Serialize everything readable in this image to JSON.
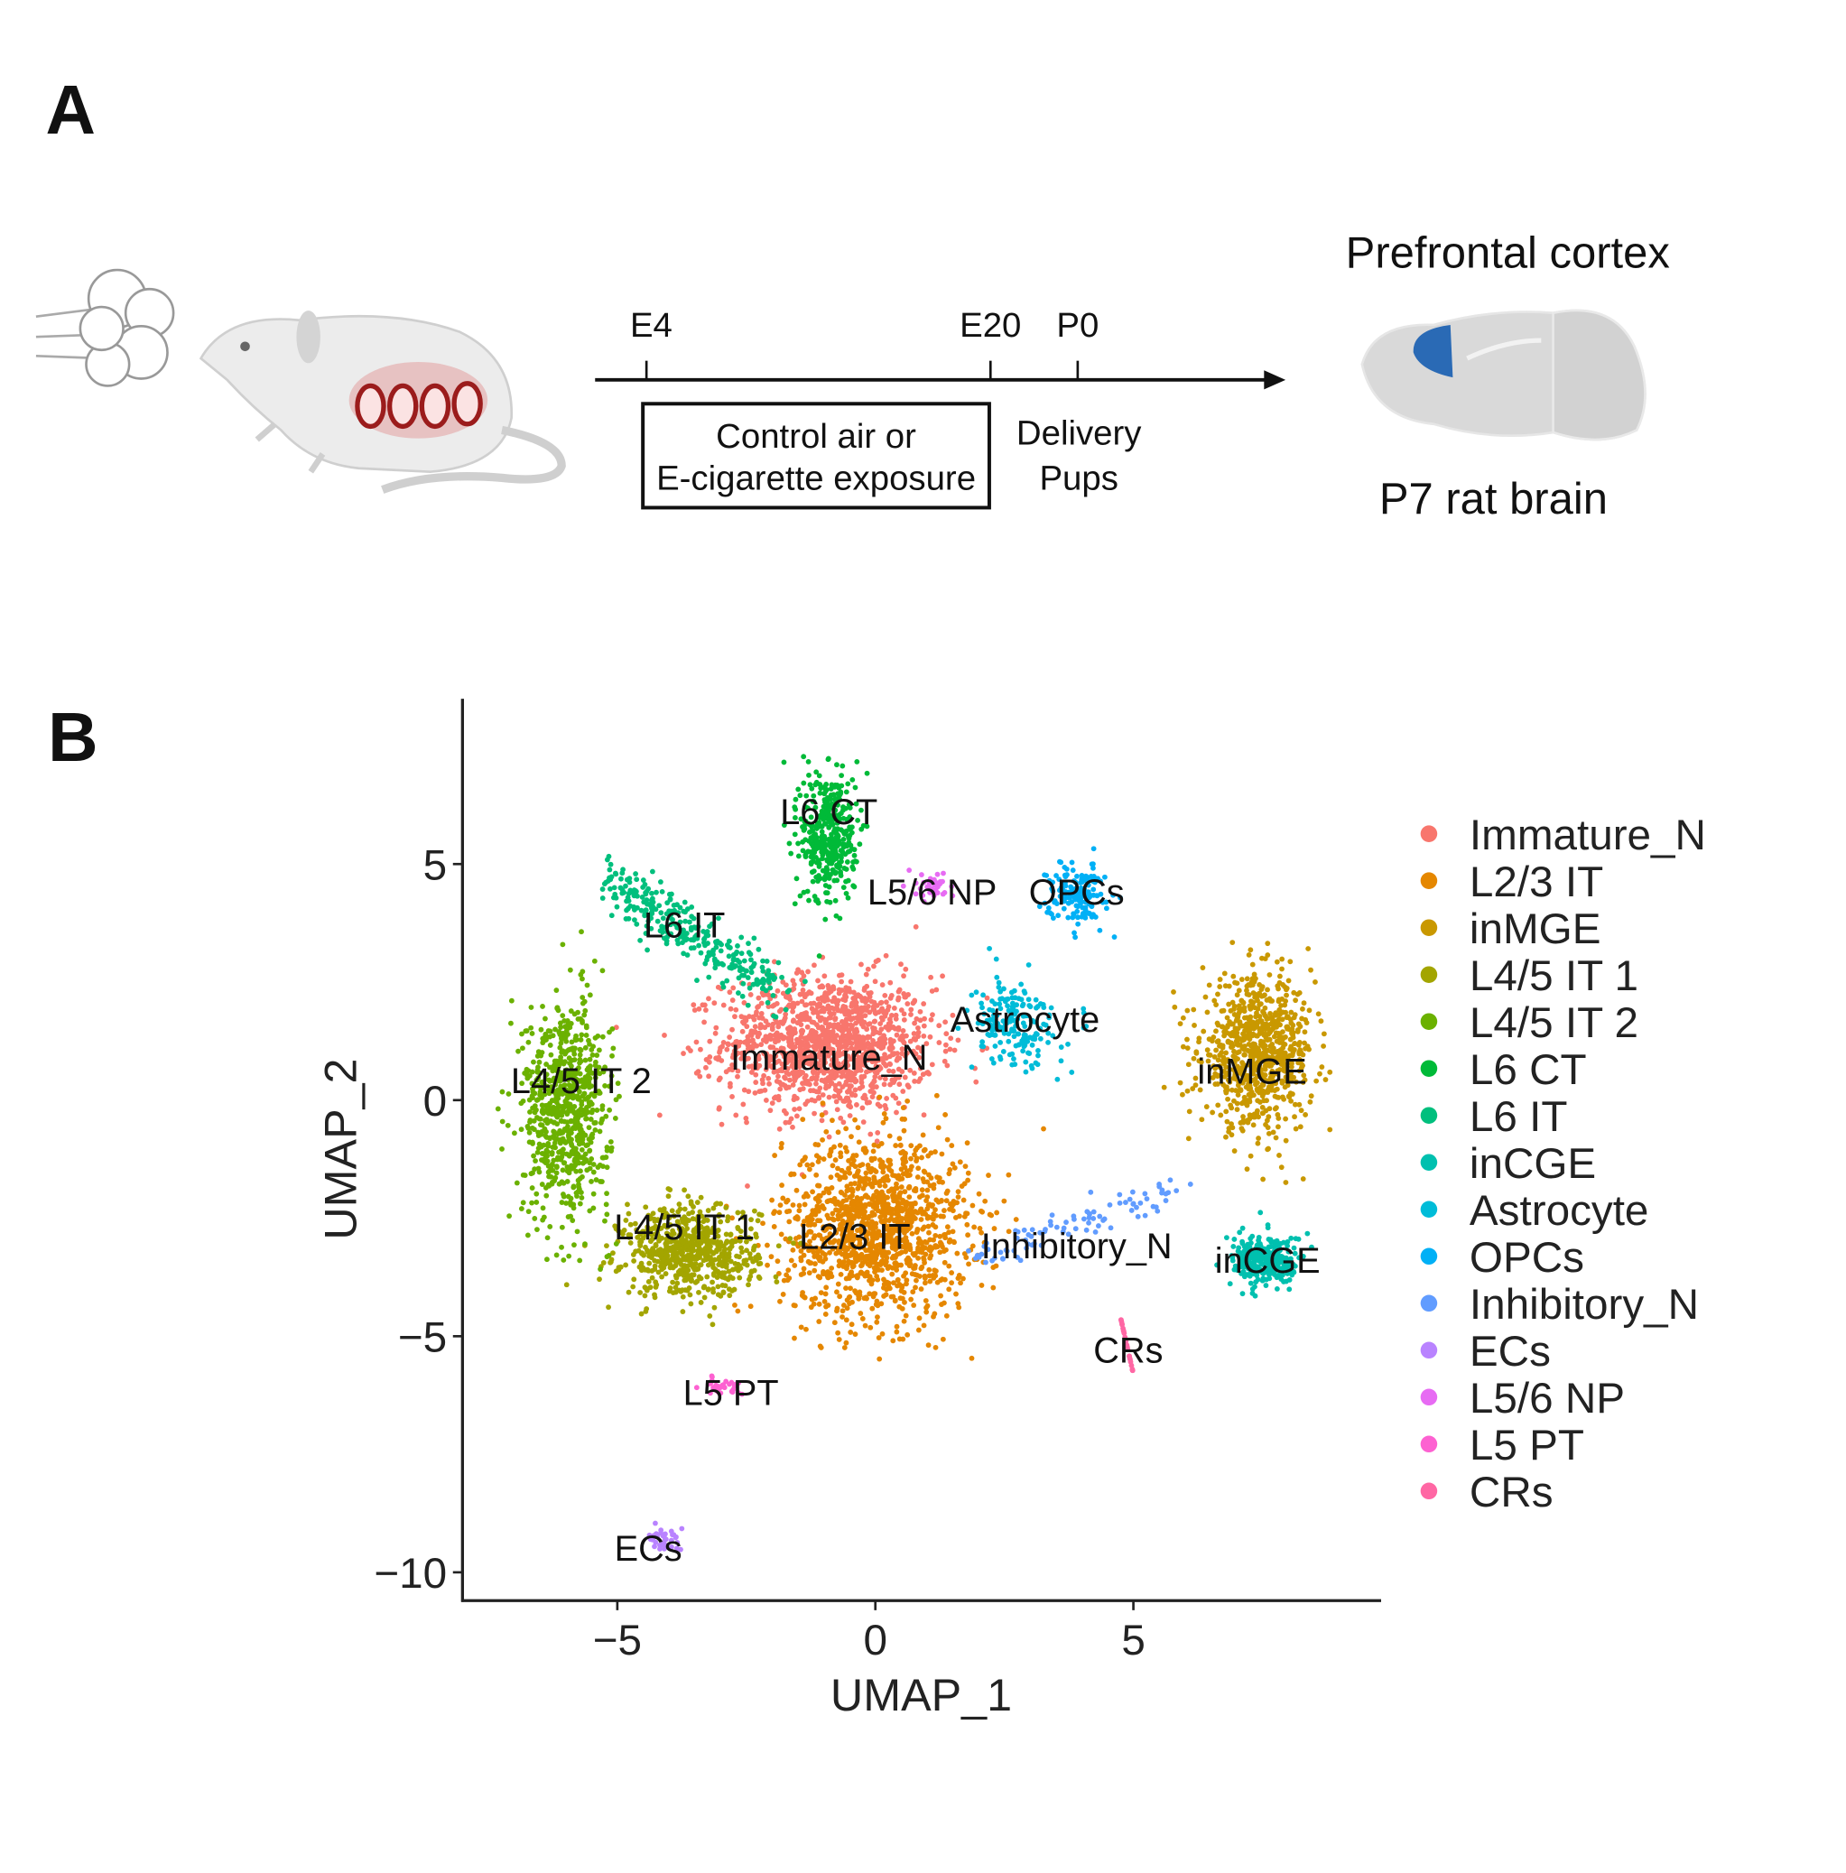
{
  "panel_a": {
    "letter": "A",
    "timeline": {
      "ticks": [
        "E4",
        "E20",
        "P0"
      ],
      "exposure_box": [
        "Control air or",
        "E-cigarette exposure"
      ],
      "delivery": [
        "Delivery",
        "Pups"
      ]
    },
    "brain_title": "Prefrontal cortex",
    "brain_caption": "P7 rat brain",
    "colors": {
      "prefrontal": "#2a6ab5",
      "brain": "#d9d9d9",
      "embryo": "#9b1c1c"
    }
  },
  "panel_b": {
    "letter": "B"
  },
  "chart_data": {
    "type": "scatter",
    "xlabel": "UMAP_1",
    "ylabel": "UMAP_2",
    "xlim": [
      -8,
      9.8
    ],
    "ylim": [
      -10.6,
      8.5
    ],
    "xticks": [
      "-5",
      "0",
      "5"
    ],
    "yticks": [
      "5",
      "0",
      "-5",
      "-10"
    ],
    "xtick_values": [
      -5,
      0,
      5
    ],
    "ytick_values": [
      5,
      0,
      -5,
      -10
    ],
    "grid": false,
    "legend_placement": "right",
    "legend": [
      "Immature_N",
      "L2/3 IT",
      "inMGE",
      "L4/5 IT 1",
      "L4/5 IT 2",
      "L6 CT",
      "L6 IT",
      "inCGE",
      "Astrocyte",
      "OPCs",
      "Inhibitory_N",
      "ECs",
      "L5/6 NP",
      "L5 PT",
      "CRs"
    ],
    "clusters": [
      {
        "name": "Immature_N",
        "color": "#F8766D",
        "center": [
          -0.9,
          1.2
        ],
        "spread": [
          1.7,
          1.2
        ],
        "label": "Immature_N",
        "label_at": [
          -0.9,
          0.9
        ]
      },
      {
        "name": "L2/3 IT",
        "color": "#E58700",
        "center": [
          0.0,
          -2.7
        ],
        "spread": [
          1.5,
          1.6
        ],
        "label": "L2/3 IT",
        "label_at": [
          -0.4,
          -2.9
        ]
      },
      {
        "name": "inMGE",
        "color": "#C99800",
        "center": [
          7.4,
          1.0
        ],
        "spread": [
          0.9,
          1.3
        ],
        "label": "inMGE",
        "label_at": [
          7.3,
          0.6
        ]
      },
      {
        "name": "L4/5 IT 1",
        "color": "#A3A500",
        "center": [
          -3.6,
          -3.2
        ],
        "spread": [
          1.1,
          0.8
        ],
        "label": "L4/5 IT 1",
        "label_at": [
          -3.7,
          -2.7
        ]
      },
      {
        "name": "L4/5 IT 2",
        "color": "#6BB100",
        "center": [
          -6.0,
          -0.2
        ],
        "spread": [
          0.7,
          1.9
        ],
        "label": "L4/5 IT 2",
        "label_at": [
          -5.7,
          0.4
        ]
      },
      {
        "name": "L6 CT",
        "color": "#00BA38",
        "center": [
          -0.9,
          5.6
        ],
        "spread": [
          0.45,
          1.2
        ],
        "label": "L6 CT",
        "label_at": [
          -0.9,
          6.1
        ]
      },
      {
        "name": "L6 IT",
        "color": "#00BF7D",
        "center": [
          -3.6,
          3.4
        ],
        "spread": [
          1.1,
          0.4
        ],
        "label": "L6 IT",
        "label_at": [
          -3.7,
          3.7
        ]
      },
      {
        "name": "inCGE",
        "color": "#00C0AF",
        "center": [
          7.6,
          -3.4
        ],
        "spread": [
          0.55,
          0.45
        ],
        "label": "inCGE",
        "label_at": [
          7.6,
          -3.4
        ]
      },
      {
        "name": "Astrocyte",
        "color": "#00BCD8",
        "center": [
          2.7,
          1.6
        ],
        "spread": [
          0.7,
          0.8
        ],
        "label": "Astrocyte",
        "label_at": [
          2.9,
          1.7
        ]
      },
      {
        "name": "OPCs",
        "color": "#00B0F6",
        "center": [
          3.9,
          4.4
        ],
        "spread": [
          0.45,
          0.55
        ],
        "label": "OPCs",
        "label_at": [
          3.9,
          4.4
        ]
      },
      {
        "name": "Inhibitory_N",
        "color": "#619CFF",
        "center": [
          3.9,
          -2.9
        ],
        "spread": [
          1.1,
          0.35
        ],
        "label": "Inhibitory_N",
        "label_at": [
          3.9,
          -3.1
        ]
      },
      {
        "name": "ECs",
        "color": "#B983FF",
        "center": [
          -4.1,
          -9.3
        ],
        "spread": [
          0.3,
          0.2
        ],
        "label": "ECs",
        "label_at": [
          -4.4,
          -9.5
        ]
      },
      {
        "name": "L5/6 NP",
        "color": "#E76BF3",
        "center": [
          1.1,
          4.5
        ],
        "spread": [
          0.3,
          0.25
        ],
        "label": "L5/6 NP",
        "label_at": [
          1.1,
          4.4
        ]
      },
      {
        "name": "L5 PT",
        "color": "#FD61D1",
        "center": [
          -3.0,
          -6.0
        ],
        "spread": [
          0.3,
          0.2
        ],
        "label": "L5 PT",
        "label_at": [
          -2.8,
          -6.2
        ]
      },
      {
        "name": "CRs",
        "color": "#FF67A4",
        "center": [
          4.85,
          -5.2
        ],
        "spread": [
          0.06,
          0.4
        ],
        "label": "CRs",
        "label_at": [
          4.9,
          -5.3
        ]
      }
    ]
  }
}
